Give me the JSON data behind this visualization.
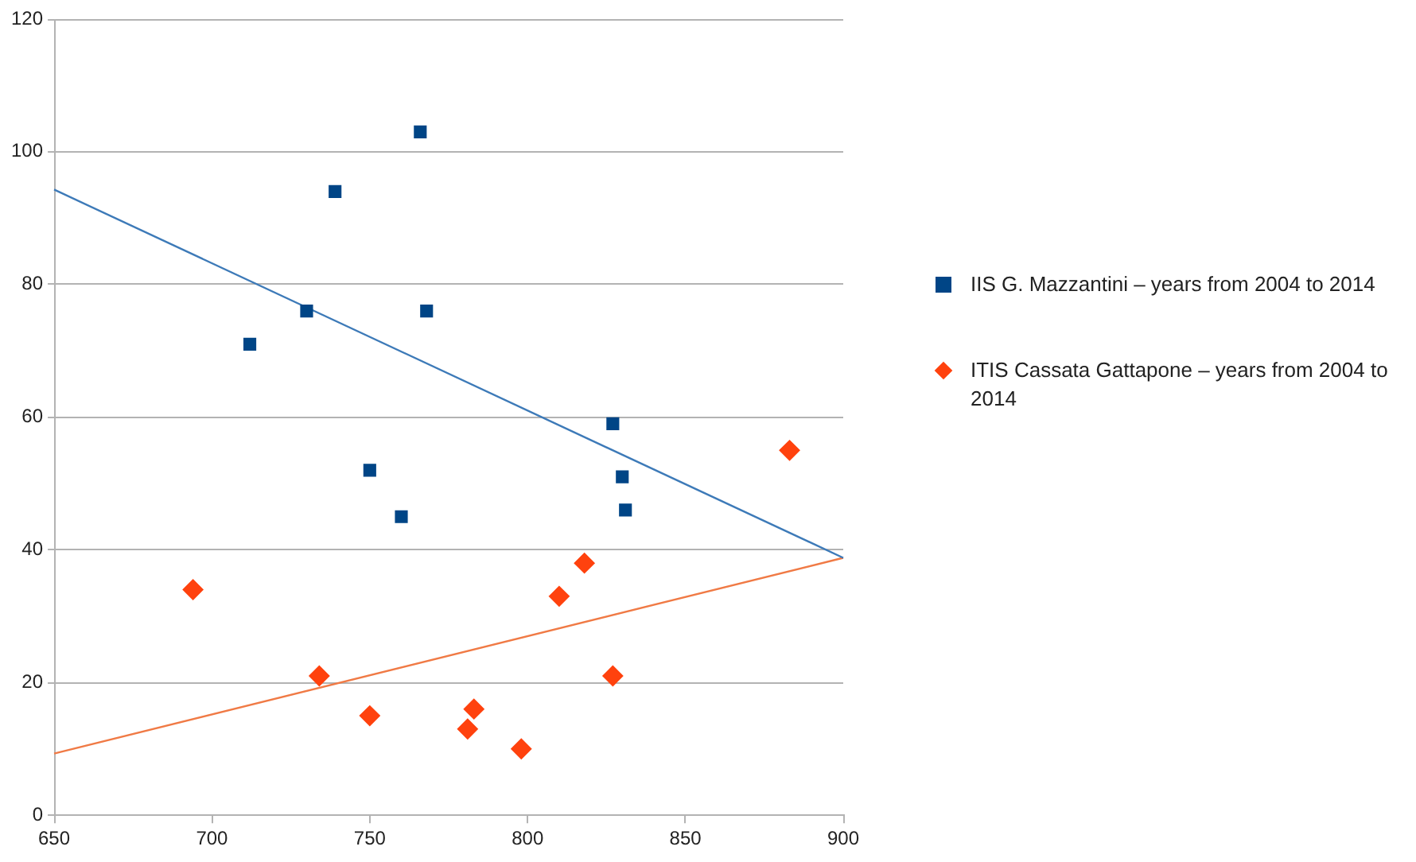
{
  "chart_data": {
    "type": "scatter",
    "xlim": [
      650,
      900
    ],
    "xticks": [
      650,
      700,
      750,
      800,
      850,
      900
    ],
    "ylim": [
      0,
      120
    ],
    "yticks": [
      0,
      20,
      40,
      60,
      80,
      100,
      120
    ],
    "grid": "y",
    "legend": "right",
    "series": [
      {
        "name": "IIS G. Mazzantini – years from 2004 to 2014",
        "color": "#004586",
        "marker": "square",
        "x": [
          712,
          730,
          739,
          750,
          760,
          766,
          768,
          827,
          830,
          831
        ],
        "values": [
          71,
          76,
          94,
          52,
          45,
          103,
          76,
          59,
          51,
          46
        ]
      },
      {
        "name": "ITIS Cassata Gattapone – years from 2004 to 2014",
        "color": "#ff420e",
        "marker": "diamond",
        "x": [
          694,
          734,
          750,
          781,
          783,
          798,
          810,
          818,
          827,
          883
        ],
        "values": [
          34,
          21,
          15,
          13,
          16,
          10,
          33,
          38,
          21,
          55
        ]
      },
      {
        "type": "line",
        "color": "#3d7ab8",
        "marker": "none",
        "x": [
          650,
          900
        ],
        "values": [
          94.3,
          38.8
        ]
      },
      {
        "type": "line",
        "color": "#f07a45",
        "marker": "none",
        "x": [
          650,
          900
        ],
        "values": [
          9.3,
          38.8
        ]
      }
    ]
  }
}
